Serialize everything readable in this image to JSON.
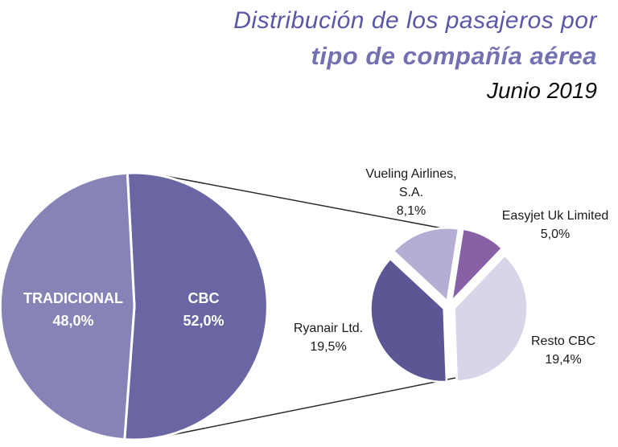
{
  "header": {
    "title_line1": "Distribución de los pasajeros por",
    "title_line2": "tipo de compañía aérea",
    "subtitle": "Junio 2019",
    "title_line1_color": "#5b57a8",
    "title_line2_color": "#7470b2",
    "subtitle_color": "#0e0e12"
  },
  "chart_data": {
    "type": "pie",
    "variant": "pie-of-pie",
    "title": "Distribución de los pasajeros por tipo de compañía aérea",
    "subtitle": "Junio 2019",
    "connector_line_color": "#2b2b2b",
    "main_pie": {
      "label_text_color": "#ffffff",
      "start_angle_deg": -3,
      "slices": [
        {
          "label": "CBC",
          "value": 52.0,
          "display": "52,0%",
          "color": "#6a66a4"
        },
        {
          "label": "TRADICIONAL",
          "value": 48.0,
          "display": "48,0%",
          "color": "#8783b6"
        }
      ]
    },
    "secondary_pie": {
      "label_text_color": "#1a1a1a",
      "start_angle_deg": 9,
      "slices": [
        {
          "label": "Easyjet Uk Limited",
          "label_lines": [
            "Easyjet Uk Limited"
          ],
          "value": 5.0,
          "display": "5,0%",
          "color": "#8760a5"
        },
        {
          "label": "Resto CBC",
          "label_lines": [
            "Resto CBC"
          ],
          "value": 19.4,
          "display": "19,4%",
          "color": "#d8d5e9"
        },
        {
          "label": "Ryanair Ltd.",
          "label_lines": [
            "Ryanair Ltd."
          ],
          "value": 19.5,
          "display": "19,5%",
          "color": "#5a5794"
        },
        {
          "label": "Vueling Airlines, S.A.",
          "label_lines": [
            "Vueling Airlines,",
            "S.A."
          ],
          "value": 8.1,
          "display": "8,1%",
          "color": "#b2aed4"
        }
      ]
    }
  }
}
